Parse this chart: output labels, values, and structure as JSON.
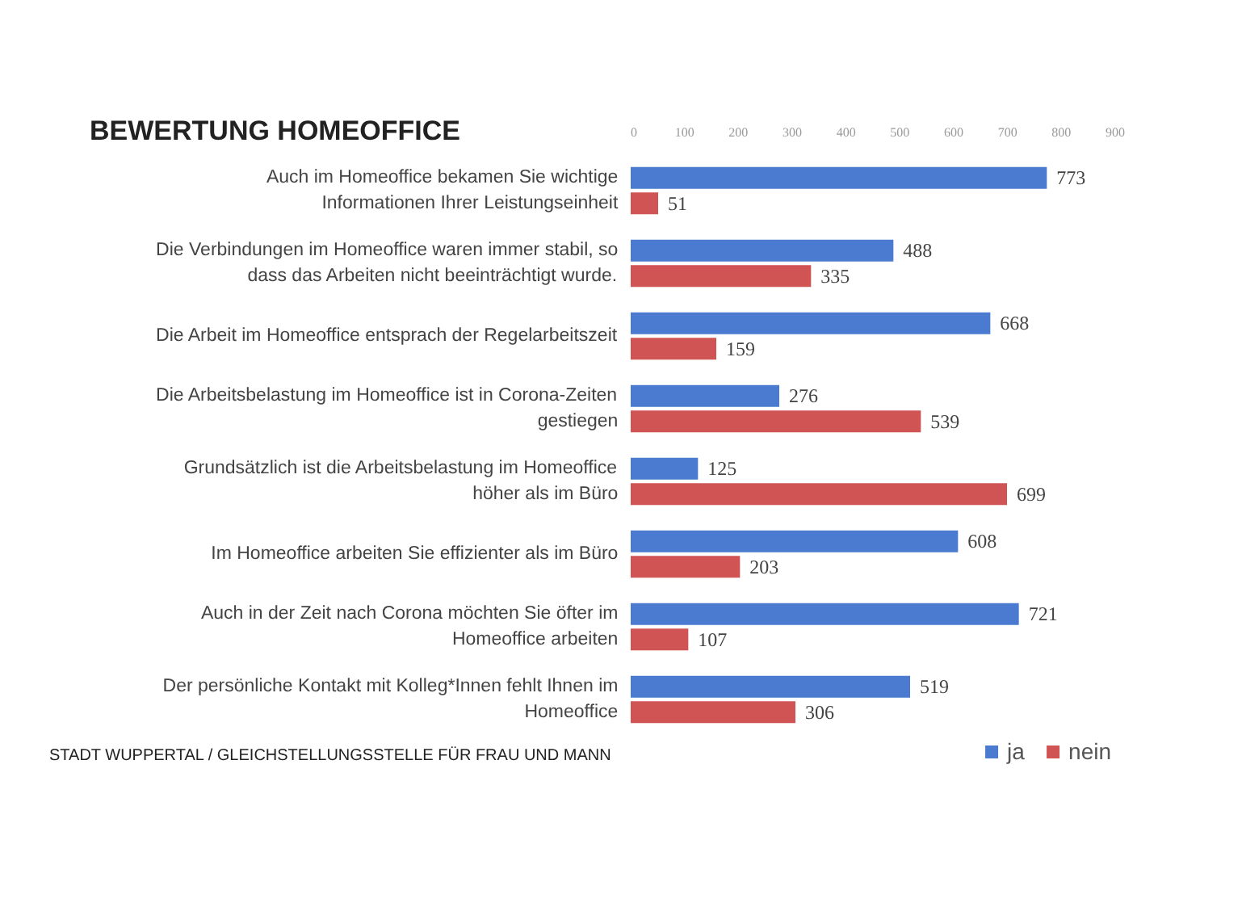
{
  "chart_data": {
    "type": "bar",
    "orientation": "horizontal",
    "title": "BEWERTUNG HOMEOFFICE",
    "categories": [
      "Auch im Homeoffice bekamen Sie wichtige\nInformationen Ihrer Leistungseinheit",
      "Die Verbindungen im Homeoffice waren immer stabil, so\ndass das Arbeiten nicht beeinträchtigt wurde.",
      "Die Arbeit im Homeoffice entsprach der Regelarbeitszeit",
      "Die Arbeitsbelastung im Homeoffice ist in Corona-Zeiten\ngestiegen",
      "Grundsätzlich ist die Arbeitsbelastung im Homeoffice\nhöher als im Büro",
      "Im Homeoffice arbeiten Sie effizienter als im Büro",
      "Auch in der Zeit nach Corona möchten Sie öfter im\nHomeoffice arbeiten",
      "Der persönliche Kontakt mit Kolleg*Innen fehlt Ihnen im\nHomeoffice"
    ],
    "series": [
      {
        "name": "ja",
        "color": "#4a7bd0",
        "values": [
          773,
          488,
          668,
          276,
          125,
          608,
          721,
          519
        ]
      },
      {
        "name": "nein",
        "color": "#d05454",
        "values": [
          51,
          335,
          159,
          539,
          699,
          203,
          107,
          306
        ]
      }
    ],
    "xlim": [
      0,
      900
    ],
    "xticks": [
      0,
      100,
      200,
      300,
      400,
      500,
      600,
      700,
      800,
      900
    ],
    "data_labels": true,
    "legend": "bottom",
    "grid": false,
    "annotations": [
      "STADT WUPPERTAL / GLEICHSTELLUNGSSTELLE FÜR FRAU UND MANN"
    ]
  }
}
